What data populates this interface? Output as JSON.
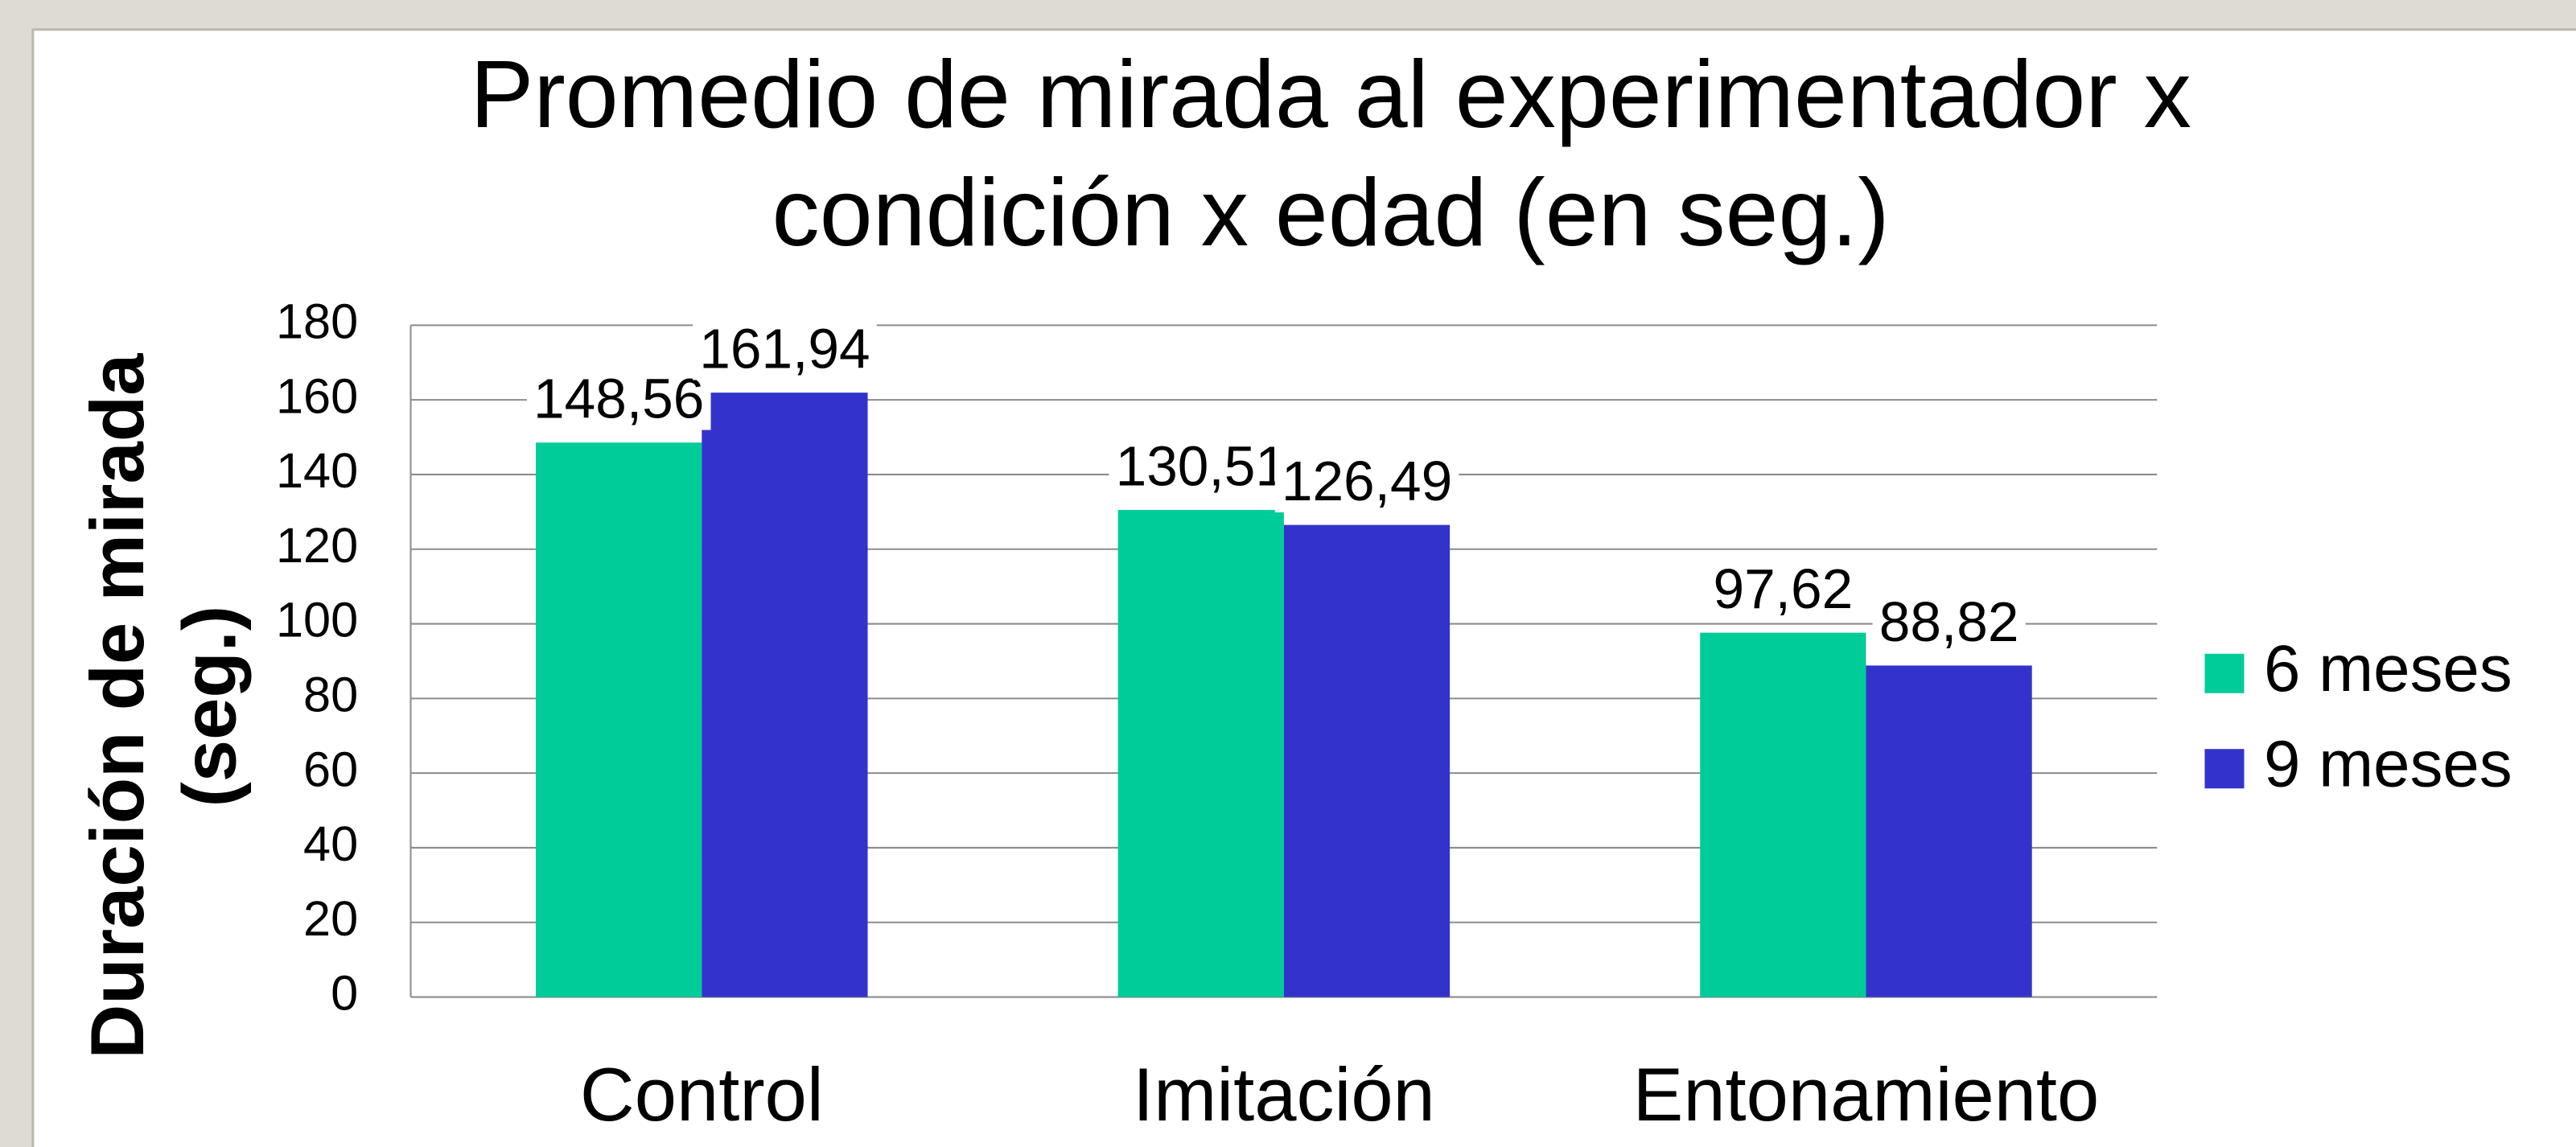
{
  "chart_data": {
    "type": "bar",
    "title": [
      "Promedio de mirada al experimentador x",
      "condición x edad (en seg.)"
    ],
    "y_label": [
      "Duración de mirada",
      "(seg.)"
    ],
    "categories": [
      "Control",
      "Imitación",
      "Entonamiento"
    ],
    "series": [
      {
        "name": "6 meses",
        "color": "#00cc99",
        "values": [
          148.56,
          130.51,
          97.62
        ],
        "value_labels": [
          "148,56",
          "130,51",
          "97,62"
        ]
      },
      {
        "name": "9 meses",
        "color": "#3333cc",
        "values": [
          161.94,
          126.49,
          88.82
        ],
        "value_labels": [
          "161,94",
          "126,49",
          "88,82"
        ]
      }
    ],
    "ylim": [
      0,
      180
    ],
    "yticks": [
      0,
      20,
      40,
      60,
      80,
      100,
      120,
      140,
      160,
      180
    ],
    "grid": true,
    "legend": "right"
  }
}
